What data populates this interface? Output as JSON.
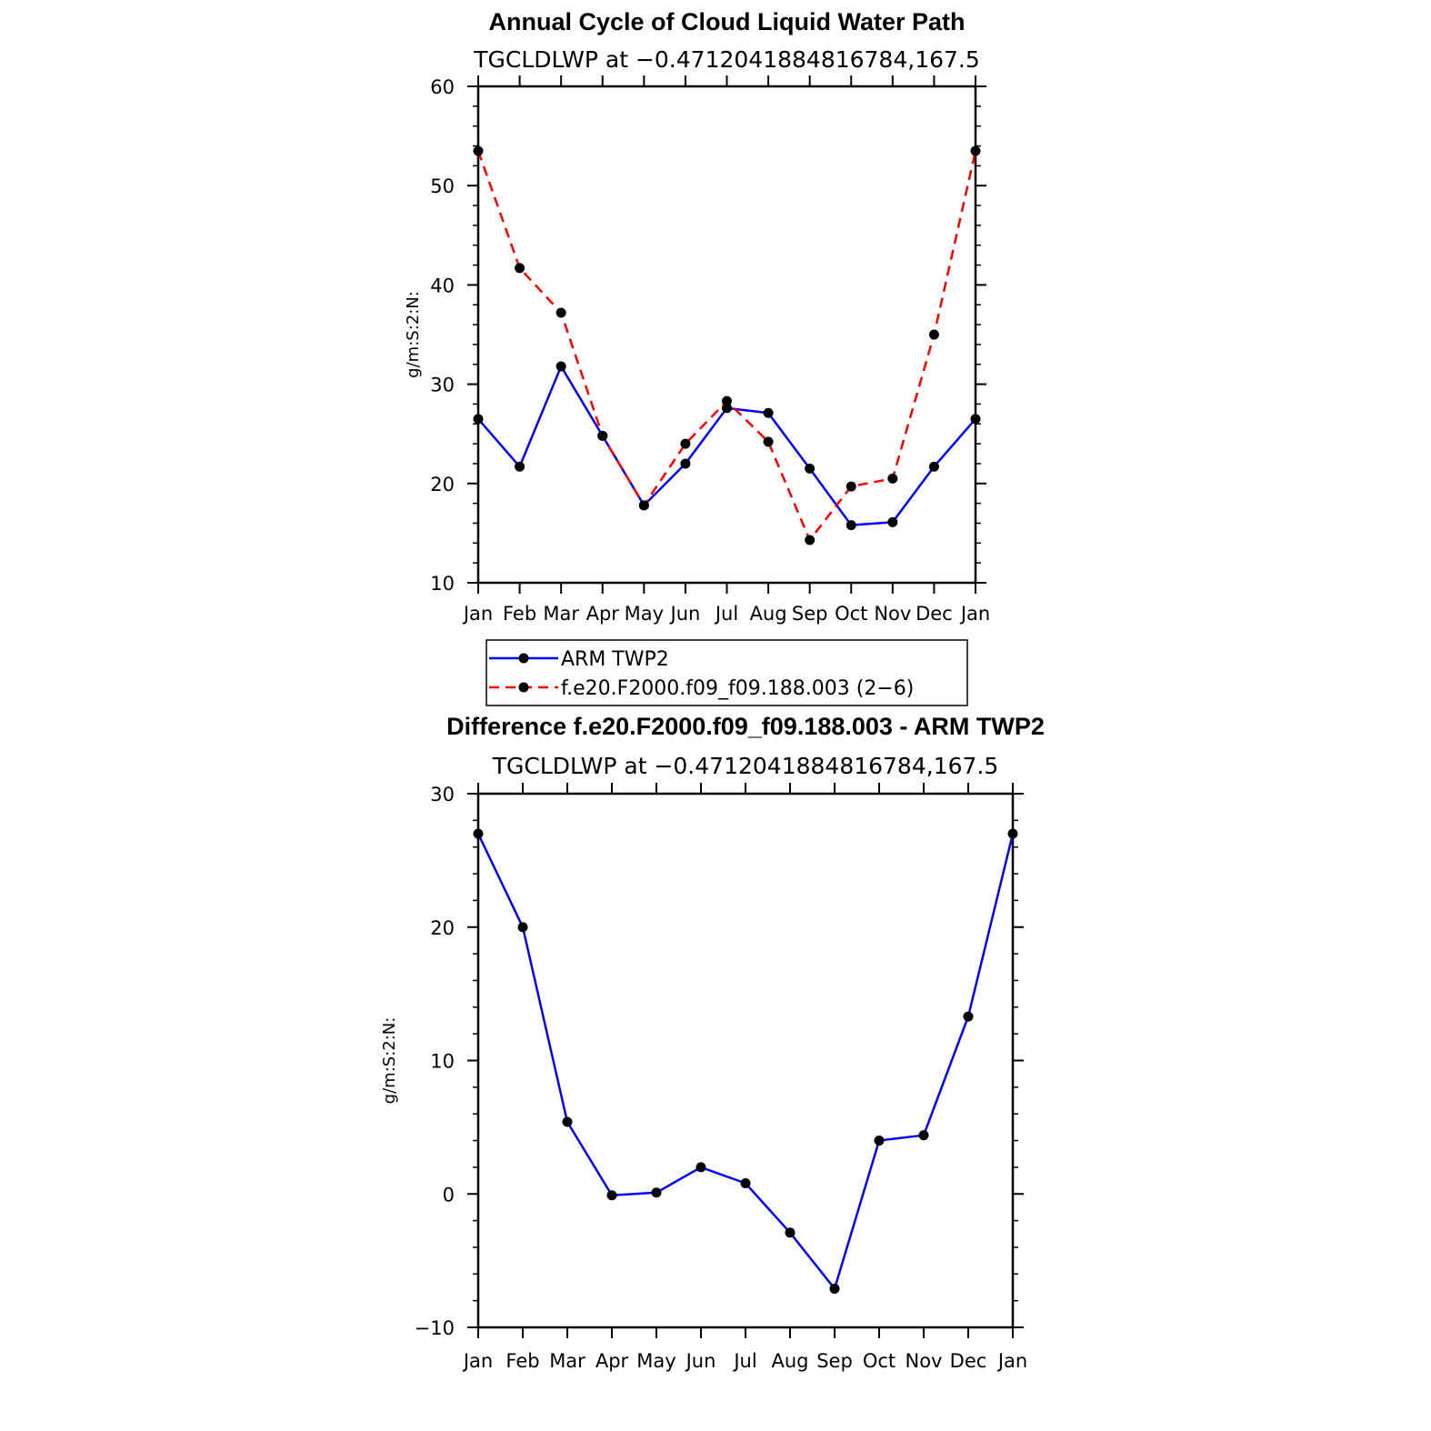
{
  "chart_data": [
    {
      "type": "line",
      "title": "Annual Cycle of Cloud Liquid Water Path",
      "subtitle": "TGCLDLWP at −0.4712041884816784,167.5",
      "xlabel": "",
      "ylabel": "g/m:S:2:N:",
      "categories": [
        "Jan",
        "Feb",
        "Mar",
        "Apr",
        "May",
        "Jun",
        "Jul",
        "Aug",
        "Sep",
        "Oct",
        "Nov",
        "Dec",
        "Jan"
      ],
      "ylim": [
        10,
        60
      ],
      "yticks": [
        10,
        20,
        30,
        40,
        50,
        60
      ],
      "ytick_labels": [
        "10",
        "20",
        "30",
        "40",
        "50",
        "60"
      ],
      "series": [
        {
          "name": "ARM TWP2",
          "color": "#0000ff",
          "dash": "solid",
          "values": [
            26.5,
            21.7,
            31.8,
            24.8,
            17.8,
            22.0,
            27.6,
            27.1,
            21.5,
            15.8,
            16.1,
            21.7,
            26.5
          ]
        },
        {
          "name": "f.e20.F2000.f09_f09.188.003 (2−6)",
          "color": "#ff0000",
          "dash": "dashed",
          "values": [
            53.5,
            41.7,
            37.2,
            24.8,
            17.8,
            24.0,
            28.3,
            24.2,
            14.3,
            19.7,
            20.5,
            35.0,
            53.5
          ]
        }
      ],
      "legend_position": "below"
    },
    {
      "type": "line",
      "title": "Difference f.e20.F2000.f09_f09.188.003 - ARM TWP2",
      "subtitle": "TGCLDLWP at −0.4712041884816784,167.5",
      "xlabel": "",
      "ylabel": "g/m:S:2:N:",
      "categories": [
        "Jan",
        "Feb",
        "Mar",
        "Apr",
        "May",
        "Jun",
        "Jul",
        "Aug",
        "Sep",
        "Oct",
        "Nov",
        "Dec",
        "Jan"
      ],
      "ylim": [
        -10,
        30
      ],
      "yticks": [
        -10,
        0,
        10,
        20,
        30
      ],
      "ytick_labels": [
        "−10",
        "0",
        "10",
        "20",
        "30"
      ],
      "series": [
        {
          "name": "Difference",
          "color": "#0000ff",
          "dash": "solid",
          "values": [
            27.0,
            20.0,
            5.4,
            -0.1,
            0.1,
            2.0,
            0.8,
            -2.9,
            -7.1,
            4.0,
            4.4,
            13.3,
            27.0
          ]
        }
      ]
    }
  ]
}
